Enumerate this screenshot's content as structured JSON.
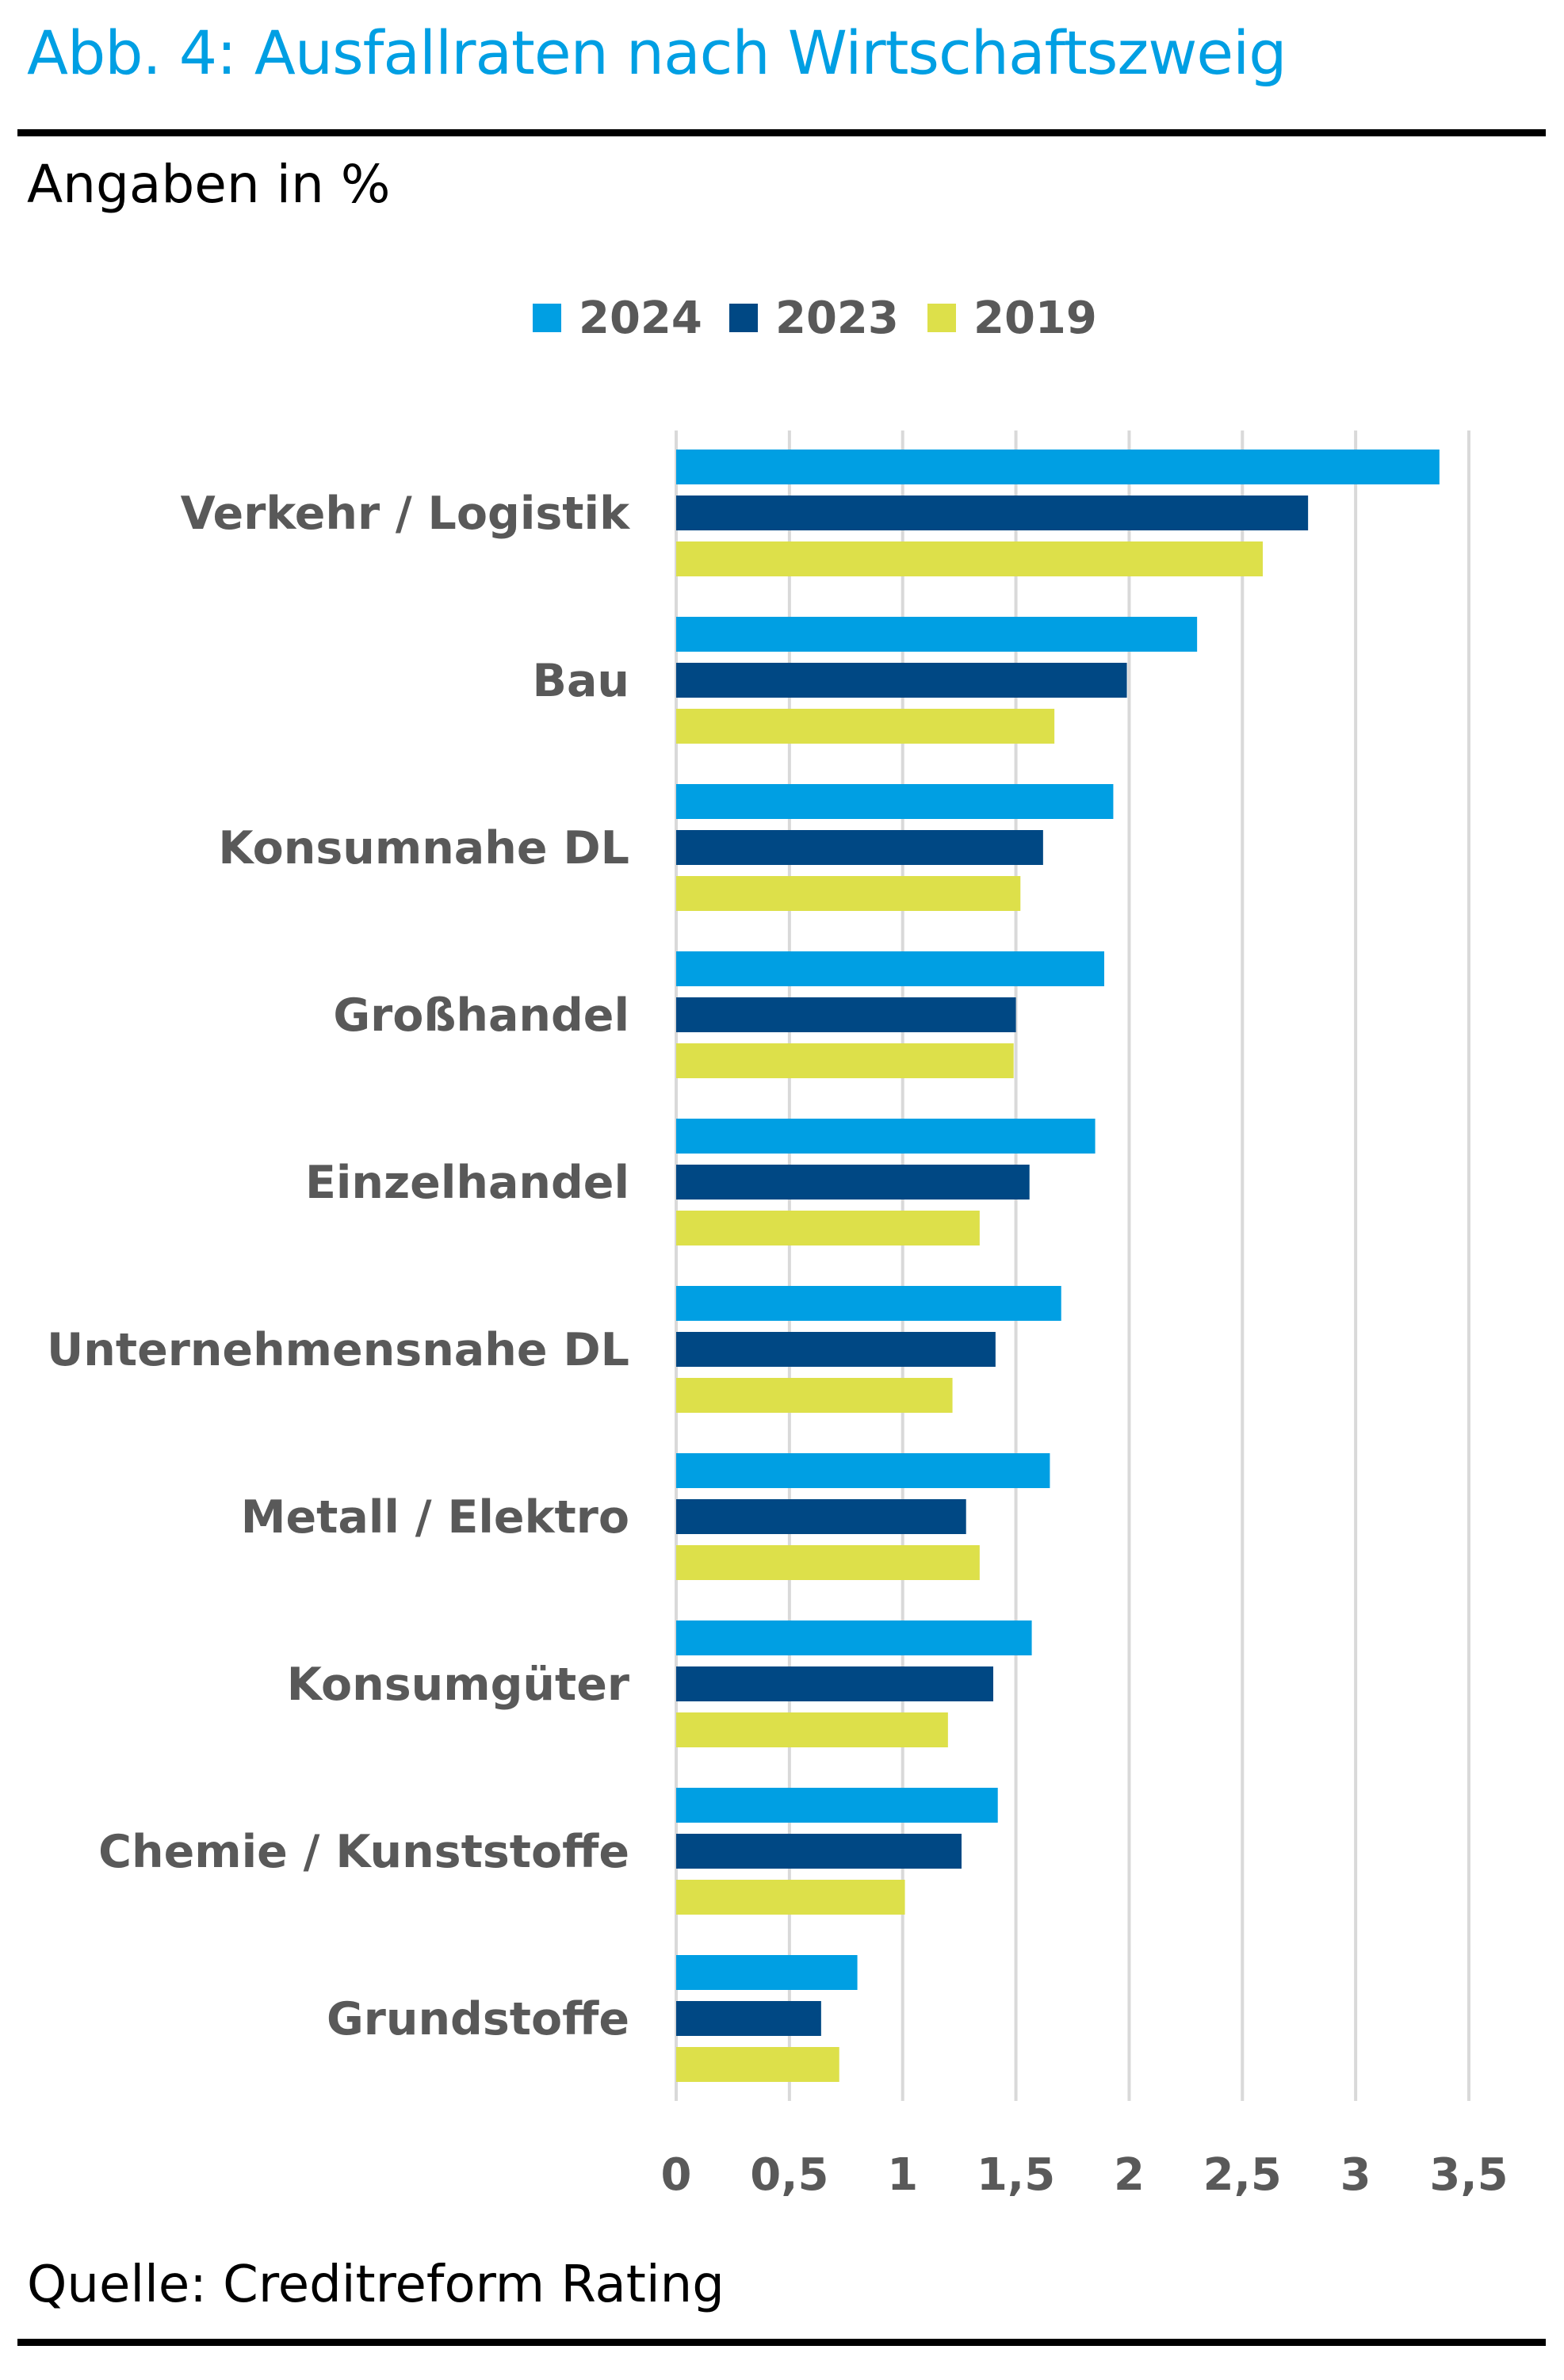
{
  "title": "Abb. 4: Ausfallraten nach Wirtschaftszweig",
  "subtitle": "Angaben in %",
  "source": "Quelle: Creditreform Rating",
  "chart_data": {
    "type": "bar",
    "orientation": "horizontal",
    "categories": [
      "Verkehr / Logistik",
      "Bau",
      "Konsumnahe DL",
      "Großhandel",
      "Einzelhandel",
      "Unternehmensnahe DL",
      "Metall / Elektro",
      "Konsumgüter",
      "Chemie / Kunststoffe",
      "Grundstoffe"
    ],
    "series": [
      {
        "name": "2024",
        "color": "#009fe3",
        "values": [
          3.37,
          2.3,
          1.93,
          1.89,
          1.85,
          1.7,
          1.65,
          1.57,
          1.42,
          0.8
        ]
      },
      {
        "name": "2023",
        "color": "#004884",
        "values": [
          2.79,
          1.99,
          1.62,
          1.5,
          1.56,
          1.41,
          1.28,
          1.4,
          1.26,
          0.64
        ]
      },
      {
        "name": "2019",
        "color": "#dde04a",
        "values": [
          2.59,
          1.67,
          1.52,
          1.49,
          1.34,
          1.22,
          1.34,
          1.2,
          1.01,
          0.72
        ]
      }
    ],
    "xlim": [
      0,
      3.5
    ],
    "xticks": [
      "0",
      "0,5",
      "1",
      "1,5",
      "2",
      "2,5",
      "3",
      "3,5"
    ],
    "xtick_values": [
      0,
      0.5,
      1,
      1.5,
      2,
      2.5,
      3,
      3.5
    ],
    "grid": true,
    "legend": "top-center",
    "gridline_color": "#d9d9d9",
    "label_color": "#595959"
  }
}
